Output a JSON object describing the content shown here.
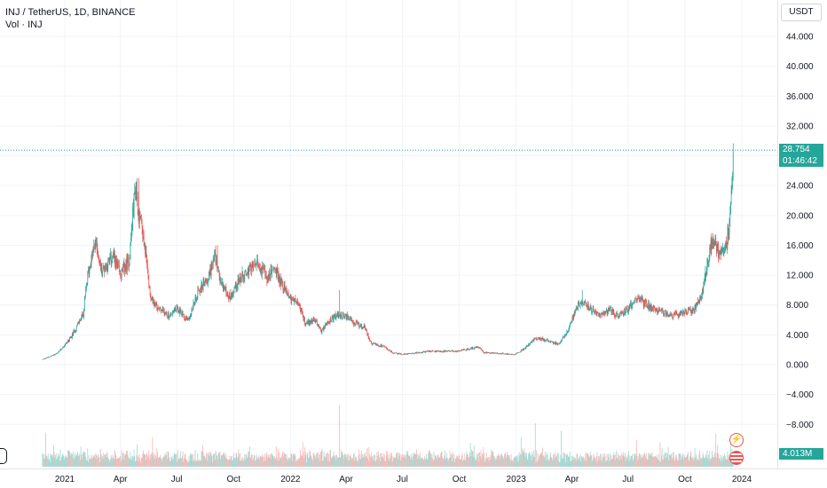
{
  "legend": {
    "symbol_line": "INJ / TetherUS, 1D, BINANCE",
    "volume_line": "Vol · INJ"
  },
  "currency": "USDT",
  "price_label": {
    "value": "28.754",
    "countdown": "01:46:42",
    "color": "#26a69a"
  },
  "volume_label": {
    "value": "4.013M",
    "color": "#26a69a"
  },
  "colors": {
    "up": "#26a69a",
    "down": "#ef5350",
    "vol_up": "#9fd8d2",
    "vol_down": "#f7b6b4",
    "grid": "#f0f3fa"
  },
  "icons": {
    "alert": "lightning-bolt-icon",
    "flag": "us-flag-icon",
    "left_edge": "hand-icon"
  },
  "chart_data": {
    "type": "candlestick",
    "title": "INJ / TetherUS, 1D, BINANCE",
    "y_ticks": [
      "44.000",
      "40.000",
      "36.000",
      "32.000",
      "28.000",
      "24.000",
      "20.000",
      "16.000",
      "12.000",
      "8.000",
      "4.000",
      "0.000",
      "−4.000",
      "−8.000"
    ],
    "y_tick_values": [
      44,
      40,
      36,
      32,
      28,
      24,
      20,
      16,
      12,
      8,
      4,
      0,
      -4,
      -8
    ],
    "ylim": [
      -12.5,
      47
    ],
    "x_ticks": [
      "2021",
      "Apr",
      "Jul",
      "Oct",
      "2022",
      "Apr",
      "Jul",
      "Oct",
      "2023",
      "Apr",
      "Jul",
      "Oct",
      "2024"
    ],
    "x_tick_dates": [
      "2021-01-01",
      "2021-04-01",
      "2021-07-01",
      "2021-10-01",
      "2022-01-01",
      "2022-04-01",
      "2022-07-01",
      "2022-10-01",
      "2023-01-01",
      "2023-04-01",
      "2023-07-01",
      "2023-10-01",
      "2024-01-01"
    ],
    "last_price": 28.754,
    "anchors": [
      [
        "2020-11-26",
        0.7
      ],
      [
        "2020-12-20",
        1.5
      ],
      [
        "2021-01-10",
        3.5
      ],
      [
        "2021-01-31",
        6.8
      ],
      [
        "2021-02-07",
        12
      ],
      [
        "2021-02-20",
        16.5
      ],
      [
        "2021-03-01",
        12.5
      ],
      [
        "2021-03-20",
        14.5
      ],
      [
        "2021-04-01",
        12
      ],
      [
        "2021-04-15",
        14
      ],
      [
        "2021-04-25",
        24
      ],
      [
        "2021-05-01",
        20
      ],
      [
        "2021-05-10",
        16
      ],
      [
        "2021-05-20",
        9
      ],
      [
        "2021-06-01",
        7.5
      ],
      [
        "2021-06-20",
        6.5
      ],
      [
        "2021-07-01",
        7.5
      ],
      [
        "2021-07-20",
        6
      ],
      [
        "2021-08-05",
        10
      ],
      [
        "2021-08-20",
        11.5
      ],
      [
        "2021-09-01",
        14.5
      ],
      [
        "2021-09-10",
        11
      ],
      [
        "2021-09-25",
        9
      ],
      [
        "2021-10-10",
        11.5
      ],
      [
        "2021-10-25",
        12.5
      ],
      [
        "2021-11-10",
        13.5
      ],
      [
        "2021-11-25",
        11.5
      ],
      [
        "2021-12-05",
        13
      ],
      [
        "2021-12-20",
        10.5
      ],
      [
        "2022-01-01",
        9
      ],
      [
        "2022-01-15",
        8
      ],
      [
        "2022-01-25",
        5.5
      ],
      [
        "2022-02-10",
        6
      ],
      [
        "2022-02-20",
        4.5
      ],
      [
        "2022-03-01",
        5.5
      ],
      [
        "2022-03-15",
        6.5
      ],
      [
        "2022-04-01",
        6.5
      ],
      [
        "2022-04-15",
        5.5
      ],
      [
        "2022-05-01",
        5
      ],
      [
        "2022-05-12",
        2.8
      ],
      [
        "2022-06-01",
        2.4
      ],
      [
        "2022-06-15",
        1.6
      ],
      [
        "2022-07-01",
        1.4
      ],
      [
        "2022-08-15",
        1.8
      ],
      [
        "2022-10-01",
        1.8
      ],
      [
        "2022-11-01",
        2.4
      ],
      [
        "2022-11-10",
        1.6
      ],
      [
        "2022-12-31",
        1.4
      ],
      [
        "2023-01-15",
        2.2
      ],
      [
        "2023-02-01",
        3.5
      ],
      [
        "2023-02-20",
        3.3
      ],
      [
        "2023-03-10",
        2.7
      ],
      [
        "2023-03-25",
        4.5
      ],
      [
        "2023-04-01",
        6
      ],
      [
        "2023-04-15",
        8.5
      ],
      [
        "2023-05-01",
        7.5
      ],
      [
        "2023-05-15",
        6.5
      ],
      [
        "2023-06-01",
        7.5
      ],
      [
        "2023-06-15",
        6.5
      ],
      [
        "2023-07-01",
        7.5
      ],
      [
        "2023-07-15",
        9
      ],
      [
        "2023-08-01",
        8
      ],
      [
        "2023-08-20",
        7.3
      ],
      [
        "2023-09-10",
        6.5
      ],
      [
        "2023-10-01",
        7
      ],
      [
        "2023-10-15",
        7.3
      ],
      [
        "2023-10-28",
        9
      ],
      [
        "2023-11-05",
        13
      ],
      [
        "2023-11-15",
        17
      ],
      [
        "2023-11-25",
        15
      ],
      [
        "2023-12-05",
        15.5
      ],
      [
        "2023-12-12",
        19
      ],
      [
        "2023-12-16",
        24
      ],
      [
        "2023-12-18",
        28.754
      ]
    ],
    "spike_highs": [
      [
        "2021-04-28",
        25
      ],
      [
        "2021-05-01",
        25
      ],
      [
        "2022-03-21",
        10
      ],
      [
        "2021-09-05",
        16
      ],
      [
        "2023-04-18",
        10
      ]
    ],
    "volume_spikes": [
      [
        "2020-12-01",
        5.3
      ],
      [
        "2022-03-21",
        9.6
      ],
      [
        "2023-03-15",
        5.6
      ],
      [
        "2023-02-01",
        6.8
      ],
      [
        "2023-11-20",
        5.2
      ],
      [
        "2023-07-15",
        4.2
      ],
      [
        "2021-04-28",
        3.5
      ]
    ]
  }
}
